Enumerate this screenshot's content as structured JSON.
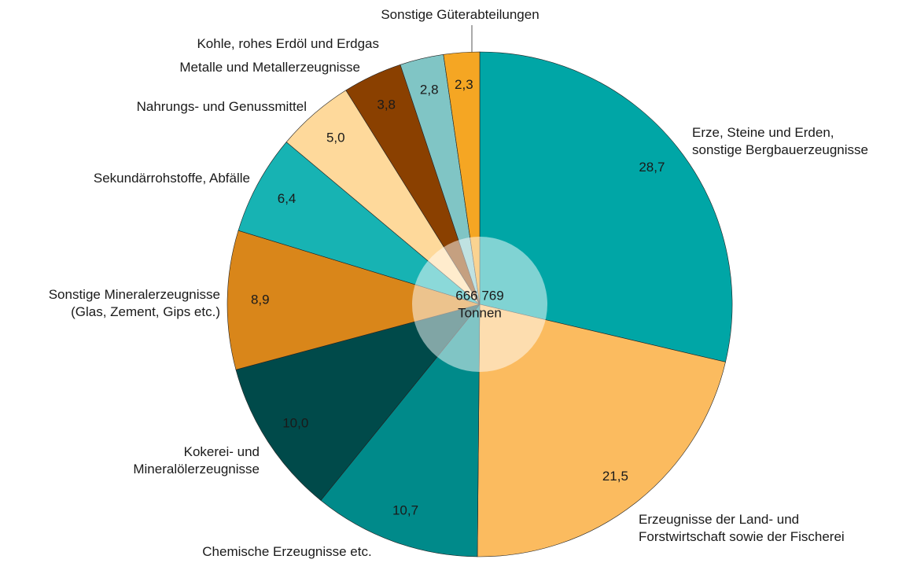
{
  "chart_data": {
    "type": "pie",
    "categories": [
      [
        "Erze, Steine und Erden,",
        "sonstige Bergbauerzeugnisse"
      ],
      [
        "Erzeugnisse der Land- und",
        "Forstwirtschaft sowie der Fischerei"
      ],
      [
        "Chemische Erzeugnisse etc."
      ],
      [
        "Kokerei- und",
        "Mineralölerzeugnisse"
      ],
      [
        "Sonstige Mineralerzeugnisse",
        "(Glas, Zement, Gips etc.)"
      ],
      [
        "Sekundärrohstoffe, Abfälle"
      ],
      [
        "Nahrungs- und Genussmittel"
      ],
      [
        "Metalle und Metallerzeugnisse"
      ],
      [
        "Kohle, rohes Erdöl und Erdgas"
      ],
      [
        "Sonstige Güterabteilungen"
      ]
    ],
    "values": [
      28.7,
      21.5,
      10.7,
      10.0,
      8.9,
      6.4,
      5.0,
      3.8,
      2.8,
      2.3
    ],
    "value_labels": [
      "28,7",
      "21,5",
      "10,7",
      "10,0",
      "8,9",
      "6,4",
      "5,0",
      "3,8",
      "2,8",
      "2,3"
    ],
    "colors": [
      "#00a6a6",
      "#fbbb5f",
      "#008a8a",
      "#004a4a",
      "#d9861a",
      "#17b3b3",
      "#fed99b",
      "#8a4000",
      "#80c5c5",
      "#f5a623"
    ],
    "center_text": [
      "666 769",
      "Tonnen"
    ]
  }
}
